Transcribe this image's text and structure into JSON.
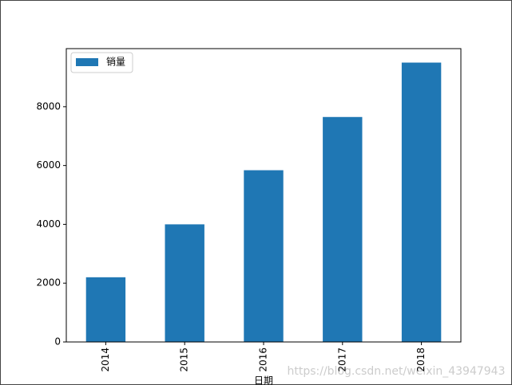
{
  "chart_data": {
    "type": "bar",
    "categories": [
      "2014",
      "2015",
      "2016",
      "2017",
      "2018"
    ],
    "values": [
      2200,
      4000,
      5840,
      7650,
      9500
    ],
    "color": "#1f77b4",
    "series_name": "销量",
    "x_label": "日期",
    "ylim": [
      0,
      9975
    ],
    "yticks": [
      0,
      2000,
      4000,
      6000,
      8000
    ],
    "legend": "upper left",
    "watermark": "https://blog.csdn.net/weixin_43947943"
  }
}
